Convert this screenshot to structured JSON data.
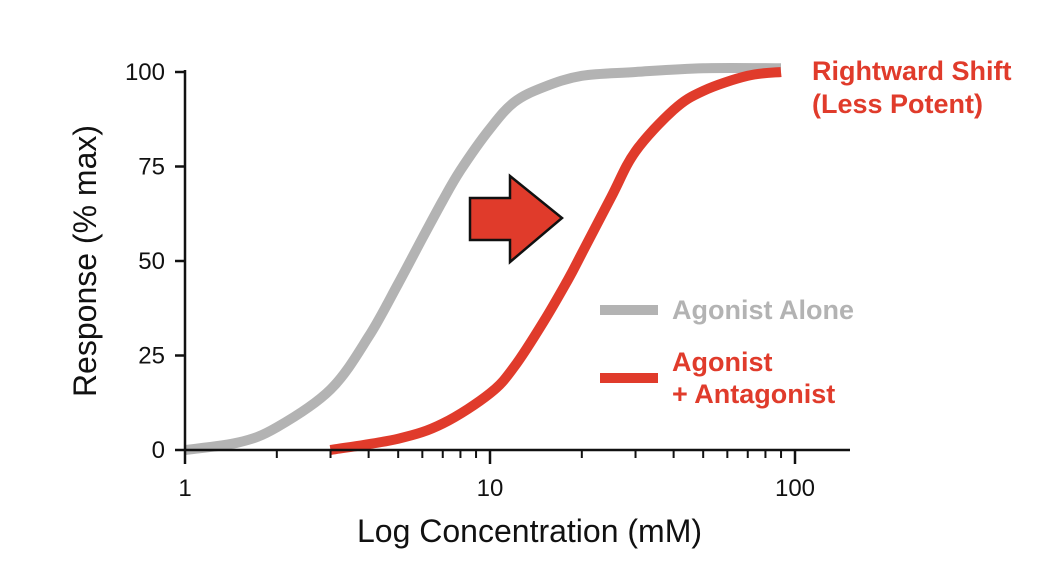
{
  "chart_data": {
    "type": "line",
    "xlabel": "Log Concentration (mM)",
    "ylabel": "Response (% max)",
    "x_scale": "log",
    "xlim": [
      1,
      150
    ],
    "ylim": [
      0,
      100
    ],
    "x_ticks": [
      1,
      10,
      100
    ],
    "x_tick_labels": [
      "1",
      "10",
      "100"
    ],
    "y_ticks": [
      0,
      25,
      50,
      75,
      100
    ],
    "y_tick_labels": [
      "0",
      "25",
      "50",
      "75",
      "100"
    ],
    "grid": false,
    "legend_position": "right",
    "series": [
      {
        "name": "Agonist Alone",
        "color": "#b3b3b3",
        "x": [
          1,
          1.5,
          2,
          3,
          4,
          5,
          6,
          7,
          8,
          10,
          12,
          15,
          20,
          30,
          50,
          90
        ],
        "y": [
          0,
          2,
          6,
          16,
          30,
          44,
          56,
          66,
          74,
          85,
          92,
          96,
          99,
          100,
          101,
          101
        ]
      },
      {
        "name": "Agonist\n+ Antagonist",
        "legend_lines": [
          "Agonist",
          "+ Antagonist"
        ],
        "color": "#e03b2b",
        "x": [
          3,
          5,
          7,
          10,
          12,
          15,
          18,
          20,
          25,
          30,
          40,
          50,
          70,
          90
        ],
        "y": [
          0,
          3,
          7,
          15,
          22,
          34,
          45,
          52,
          67,
          79,
          90,
          95,
          99,
          100
        ]
      }
    ],
    "annotations": [
      {
        "lines": [
          "Rightward Shift",
          "(Less Potent)"
        ],
        "color": "#e03b2b"
      }
    ],
    "arrow": {
      "direction": "right",
      "fill_color": "#e03b2b",
      "stroke_color": "#111111"
    }
  }
}
